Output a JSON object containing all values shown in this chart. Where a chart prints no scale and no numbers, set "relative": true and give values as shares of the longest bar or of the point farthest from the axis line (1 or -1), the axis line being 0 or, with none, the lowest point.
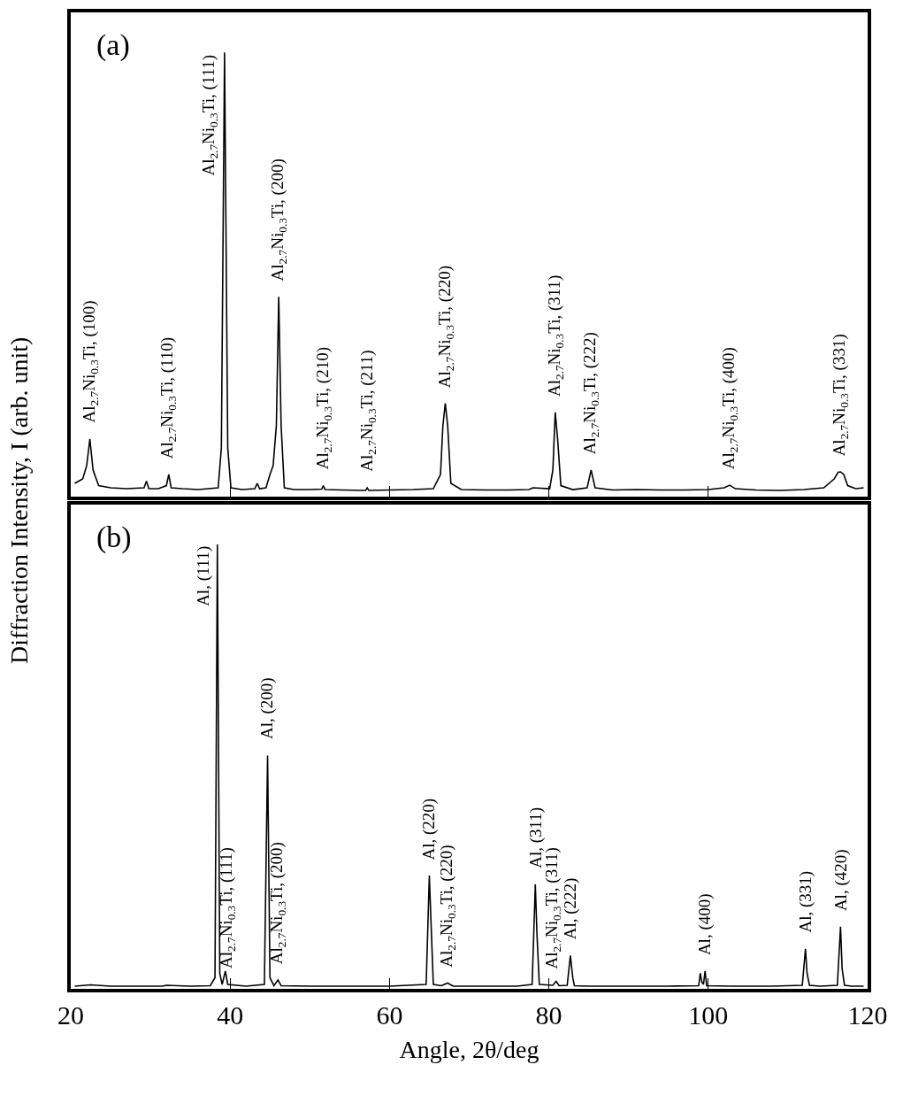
{
  "chart_data": [
    {
      "type": "line",
      "relative": true,
      "ylabel": "Diffraction Intensity, I (arb. unit)",
      "xlim": [
        20,
        120
      ],
      "xticks": [
        20,
        40,
        60,
        80,
        100,
        120
      ],
      "tick_labels": false,
      "series": [
        {
          "color": "#000000",
          "x": [
            20.5,
            21.5,
            22.0,
            22.4,
            22.8,
            23.5,
            25,
            27,
            29.2,
            29.5,
            29.8,
            31,
            32.0,
            32.3,
            32.6,
            34,
            36,
            38.5,
            38.9,
            39.3,
            39.7,
            40.1,
            41.5,
            43.1,
            43.4,
            43.7,
            44.5,
            45.0,
            45.4,
            45.8,
            46.1,
            46.4,
            46.8,
            48,
            50,
            51.5,
            51.7,
            51.9,
            54,
            57.0,
            57.2,
            57.4,
            60,
            63,
            65.5,
            66.4,
            66.7,
            67.0,
            67.3,
            67.7,
            69,
            72,
            75,
            77.5,
            78,
            80.1,
            80.5,
            80.8,
            81.1,
            81.5,
            83,
            84.8,
            85.3,
            85.8,
            88,
            91,
            94,
            97,
            100,
            102.0,
            102.7,
            103.4,
            106,
            109,
            112,
            114.5,
            115.8,
            116.3,
            116.6,
            117.0,
            117.5,
            118.5,
            119.5
          ],
          "values": [
            0.03,
            0.04,
            0.07,
            0.13,
            0.06,
            0.025,
            0.02,
            0.018,
            0.02,
            0.035,
            0.018,
            0.018,
            0.025,
            0.05,
            0.02,
            0.018,
            0.016,
            0.02,
            0.11,
            1,
            0.11,
            0.02,
            0.016,
            0.018,
            0.03,
            0.018,
            0.02,
            0.05,
            0.07,
            0.16,
            0.45,
            0.16,
            0.02,
            0.016,
            0.016,
            0.017,
            0.025,
            0.016,
            0.015,
            0.014,
            0.02,
            0.014,
            0.015,
            0.016,
            0.018,
            0.05,
            0.16,
            0.21,
            0.16,
            0.03,
            0.016,
            0.015,
            0.015,
            0.016,
            0.02,
            0.018,
            0.06,
            0.19,
            0.13,
            0.025,
            0.016,
            0.02,
            0.06,
            0.02,
            0.015,
            0.016,
            0.015,
            0.015,
            0.016,
            0.02,
            0.026,
            0.018,
            0.015,
            0.014,
            0.016,
            0.02,
            0.04,
            0.055,
            0.056,
            0.05,
            0.025,
            0.018,
            0.02
          ]
        }
      ],
      "annotations": [
        "(a)",
        {
          "text": "Al$_{2.7}$Ni$_{0.3}$Ti, (100)",
          "x": 22.4,
          "y": 0.13
        },
        {
          "text": "Al$_{2.7}$Ni$_{0.3}$Ti, (110)",
          "x": 32.3,
          "y": 0.05
        },
        {
          "text": "Al$_{2.7}$Ni$_{0.3}$Ti, (111)",
          "x": 39.3,
          "y": 1
        },
        {
          "text": "Al$_{2.7}$Ni$_{0.3}$Ti, (200)",
          "x": 46.1,
          "y": 0.45
        },
        {
          "text": "Al$_{2.7}$Ni$_{0.3}$Ti, (210)",
          "x": 51.7,
          "y": 0.025
        },
        {
          "text": "Al$_{2.7}$Ni$_{0.3}$Ti, (211)",
          "x": 57.2,
          "y": 0.02
        },
        {
          "text": "Al$_{2.7}$Ni$_{0.3}$Ti, (220)",
          "x": 67.0,
          "y": 0.21
        },
        {
          "text": "Al$_{2.7}$Ni$_{0.3}$Ti, (311)",
          "x": 80.8,
          "y": 0.19
        },
        {
          "text": "Al$_{2.7}$Ni$_{0.3}$Ti, (222)",
          "x": 85.3,
          "y": 0.06
        },
        {
          "text": "Al$_{2.7}$Ni$_{0.3}$Ti, (400)",
          "x": 102.7,
          "y": 0.026
        },
        {
          "text": "Al$_{2.7}$Ni$_{0.3}$Ti, (331)",
          "x": 116.6,
          "y": 0.056
        }
      ]
    },
    {
      "type": "line",
      "relative": true,
      "xlabel": "Angle, 2θ/deg",
      "xlim": [
        20,
        120
      ],
      "xticks": [
        20,
        40,
        60,
        80,
        100,
        120
      ],
      "tick_labels": "x",
      "series": [
        {
          "color": "#000000",
          "x": [
            20.5,
            22.5,
            25,
            28,
            31.5,
            32,
            35,
            37.5,
            38.1,
            38.4,
            38.7,
            39.0,
            39.4,
            39.7,
            42,
            44.3,
            44.7,
            45.0,
            45.5,
            46.0,
            46.4,
            50,
            55,
            60,
            64.6,
            65.0,
            65.2,
            65.5,
            66.5,
            67.3,
            68,
            72,
            76,
            77.9,
            78.3,
            78.5,
            78.8,
            80.5,
            80.9,
            81.3,
            82.3,
            82.7,
            83.0,
            83.2,
            85,
            90,
            95,
            98.8,
            99.0,
            99.2,
            99.4,
            99.6,
            99.8,
            103,
            108,
            111.8,
            112.2,
            112.4,
            112.7,
            114,
            116.2,
            116.6,
            116.8,
            117.1,
            118,
            119.5
          ],
          "values": [
            0.006,
            0.009,
            0.006,
            0.006,
            0.006,
            0.008,
            0.006,
            0.007,
            0.025,
            1,
            0.035,
            0.01,
            0.04,
            0.01,
            0.006,
            0.01,
            0.525,
            0.025,
            0.007,
            0.02,
            0.007,
            0.006,
            0.006,
            0.006,
            0.01,
            0.255,
            0.155,
            0.01,
            0.007,
            0.013,
            0.006,
            0.006,
            0.006,
            0.01,
            0.235,
            0.125,
            0.01,
            0.008,
            0.017,
            0.007,
            0.008,
            0.075,
            0.025,
            0.007,
            0.006,
            0.006,
            0.006,
            0.007,
            0.035,
            0.015,
            0.01,
            0.04,
            0.007,
            0.006,
            0.006,
            0.008,
            0.09,
            0.035,
            0.008,
            0.006,
            0.008,
            0.14,
            0.045,
            0.008,
            0.006,
            0.006
          ]
        }
      ],
      "annotations": [
        "(b)",
        {
          "text": "Al, (111)",
          "x": 38.4,
          "y": 1
        },
        {
          "text": "Al$_{2.7}$Ni$_{0.3}$Ti, (111)",
          "x": 39.7,
          "y": 0.01
        },
        {
          "text": "Al, (200)",
          "x": 44.7,
          "y": 0.525
        },
        {
          "text": "Al$_{2.7}$Ni$_{0.3}$Ti, (200)",
          "x": 46.0,
          "y": 0.02
        },
        {
          "text": "Al, (220)",
          "x": 65.0,
          "y": 0.255
        },
        {
          "text": "Al$_{2.7}$Ni$_{0.3}$Ti, (220)",
          "x": 67.3,
          "y": 0.013
        },
        {
          "text": "Al, (311)",
          "x": 78.3,
          "y": 0.235
        },
        {
          "text": "Al$_{2.7}$Ni$_{0.3}$Ti, (311)",
          "x": 80.5,
          "y": 0.008
        },
        {
          "text": "Al, (222)",
          "x": 82.7,
          "y": 0.075
        },
        {
          "text": "Al, (400)",
          "x": 99.6,
          "y": 0.04
        },
        {
          "text": "Al, (331)",
          "x": 112.2,
          "y": 0.09
        },
        {
          "text": "Al, (420)",
          "x": 116.6,
          "y": 0.14
        }
      ]
    }
  ]
}
